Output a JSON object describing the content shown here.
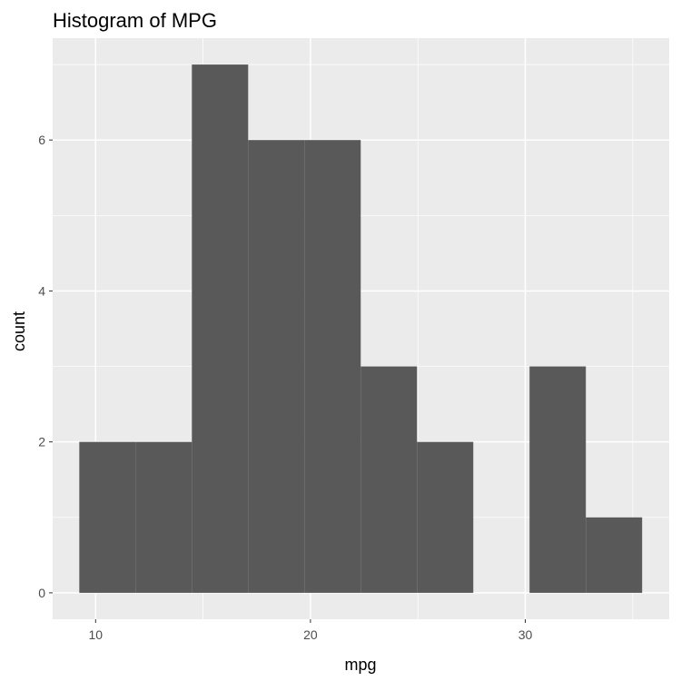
{
  "chart_data": {
    "type": "bar",
    "title": "Histogram of MPG",
    "xlabel": "mpg",
    "ylabel": "count",
    "bins": [
      {
        "x0": 9.24,
        "x1": 11.86,
        "count": 2
      },
      {
        "x0": 11.86,
        "x1": 14.48,
        "count": 2
      },
      {
        "x0": 14.48,
        "x1": 17.1,
        "count": 7
      },
      {
        "x0": 17.1,
        "x1": 19.72,
        "count": 6
      },
      {
        "x0": 19.72,
        "x1": 22.34,
        "count": 6
      },
      {
        "x0": 22.34,
        "x1": 24.96,
        "count": 3
      },
      {
        "x0": 24.96,
        "x1": 27.58,
        "count": 2
      },
      {
        "x0": 27.58,
        "x1": 30.2,
        "count": 0
      },
      {
        "x0": 30.2,
        "x1": 32.82,
        "count": 3
      },
      {
        "x0": 32.82,
        "x1": 35.44,
        "count": 1
      }
    ],
    "xlim": [
      8.0,
      36.7
    ],
    "ylim": [
      -0.35,
      7.35
    ],
    "x_ticks": [
      10,
      20,
      30
    ],
    "x_tick_labels": [
      "10",
      "20",
      "30"
    ],
    "y_ticks": [
      0,
      2,
      4,
      6
    ],
    "y_tick_labels": [
      "0",
      "2",
      "4",
      "6"
    ],
    "grid": true,
    "colors": {
      "bar": "#595959",
      "panel": "#ebebeb",
      "grid": "#ffffff",
      "tick_text": "#4d4d4d"
    }
  }
}
